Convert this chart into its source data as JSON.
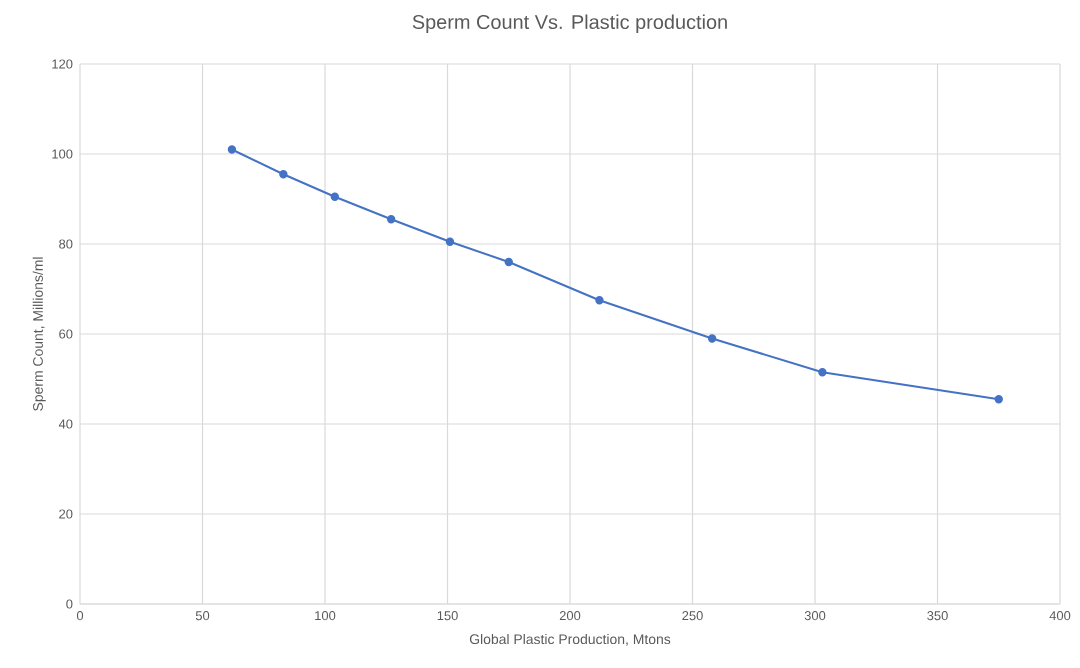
{
  "chart_data": {
    "type": "line",
    "title": "Sperm Count Vs. Plastic production",
    "xlabel": "Global Plastic Production, Mtons",
    "ylabel": "Sperm Count, Millions/ml",
    "x": [
      62,
      83,
      104,
      127,
      151,
      175,
      212,
      258,
      303,
      375
    ],
    "series": [
      {
        "color": "#4472c4",
        "values": [
          101,
          95.5,
          90.5,
          85.5,
          80.5,
          76,
          67.5,
          59,
          51.5,
          45.5
        ]
      }
    ],
    "xlim": [
      0,
      400
    ],
    "xticks": [
      0,
      50,
      100,
      150,
      200,
      250,
      300,
      350,
      400
    ],
    "ylim": [
      0,
      120
    ],
    "yticks": [
      0,
      20,
      40,
      60,
      80,
      100,
      120
    ],
    "grid": true,
    "marker": "circle",
    "line_style": "solid"
  }
}
